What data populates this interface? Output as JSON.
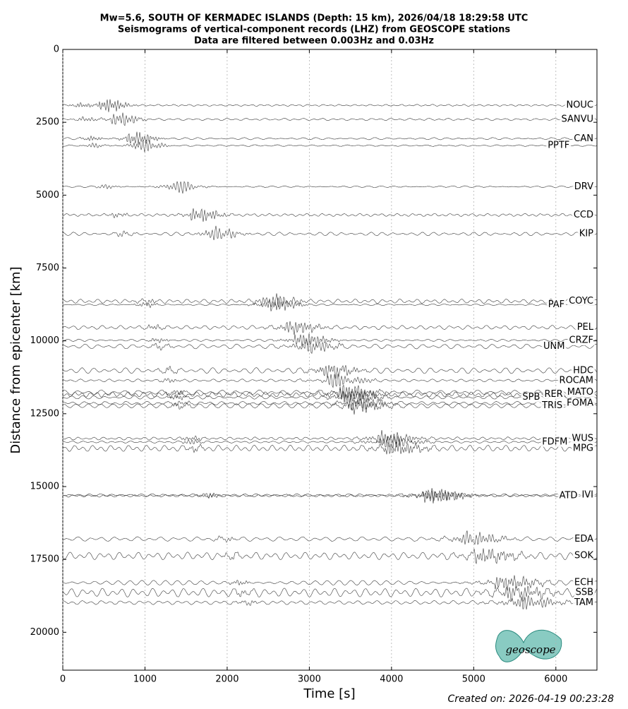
{
  "chart_data": {
    "type": "record-section",
    "title": [
      "Mw=5.6, SOUTH OF KERMADEC ISLANDS (Depth: 15 km), 2026/04/18 18:29:58 UTC",
      "Seismograms of vertical-component records (LHZ) from GEOSCOPE stations",
      "Data are filtered between 0.003Hz and 0.03Hz"
    ],
    "xlabel": "Time [s]",
    "ylabel": "Distance from epicenter [km]",
    "stations": [
      "NOUC",
      "SANVU",
      "CAN",
      "PPTF",
      "DRV",
      "CCD",
      "KIP",
      "COYC",
      "PAF",
      "PEL",
      "CRZF",
      "UNM",
      "HDC",
      "ROCAM",
      "MATO",
      "RER",
      "SPB",
      "FOMA",
      "TRIS",
      "WUS",
      "FDFM",
      "MPG",
      "IVI",
      "ATD",
      "EDA",
      "SOK",
      "ECH",
      "SSB",
      "TAM"
    ],
    "distances": [
      1917,
      2400,
      3060,
      3300,
      4710,
      5680,
      6330,
      8640,
      8760,
      9540,
      9980,
      10190,
      11020,
      11360,
      11770,
      11840,
      11940,
      12140,
      12230,
      13350,
      13470,
      13690,
      15290,
      15320,
      16800,
      17380,
      18300,
      18640,
      18980
    ],
    "xlim": [
      0,
      6500
    ],
    "ylim": [
      0,
      21300
    ],
    "y_inverted": true,
    "xticks": [
      0,
      1000,
      2000,
      3000,
      4000,
      5000,
      6000
    ],
    "yticks": [
      0,
      2500,
      5000,
      7500,
      10000,
      12500,
      15000,
      17500,
      20000
    ],
    "grid": "x",
    "trace_color": "#3a3a3a"
  },
  "footer": "Created on: 2026-04-19 00:23:28",
  "logo": "geoscope"
}
